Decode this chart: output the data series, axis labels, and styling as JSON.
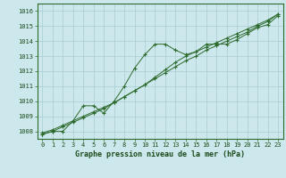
{
  "title": "Graphe pression niveau de la mer (hPa)",
  "background_color": "#cde8ec",
  "grid_color": "#a8cdd2",
  "line_color": "#2d6a2d",
  "x_values": [
    0,
    1,
    2,
    3,
    4,
    5,
    6,
    7,
    8,
    9,
    10,
    11,
    12,
    13,
    14,
    15,
    16,
    17,
    18,
    19,
    20,
    21,
    22,
    23
  ],
  "series1": [
    1007.8,
    1008.0,
    1008.0,
    1008.7,
    1009.7,
    1009.7,
    1009.2,
    1010.0,
    1011.0,
    1012.2,
    1013.1,
    1013.8,
    1013.8,
    1013.4,
    1013.1,
    1013.3,
    1013.8,
    1013.8,
    1013.8,
    1014.1,
    1014.5,
    1014.9,
    1015.1,
    1015.7
  ],
  "series2": [
    1007.9,
    1008.1,
    1008.4,
    1008.7,
    1009.0,
    1009.3,
    1009.6,
    1009.9,
    1010.3,
    1010.7,
    1011.1,
    1011.5,
    1011.9,
    1012.3,
    1012.7,
    1013.0,
    1013.4,
    1013.7,
    1014.0,
    1014.3,
    1014.6,
    1015.0,
    1015.3,
    1015.8
  ],
  "series3": [
    1007.8,
    1008.0,
    1008.3,
    1008.6,
    1008.9,
    1009.2,
    1009.5,
    1009.9,
    1010.3,
    1010.7,
    1011.1,
    1011.6,
    1012.1,
    1012.6,
    1013.0,
    1013.3,
    1013.6,
    1013.9,
    1014.2,
    1014.5,
    1014.8,
    1015.1,
    1015.4,
    1015.8
  ],
  "ylim": [
    1007.5,
    1016.5
  ],
  "yticks": [
    1008,
    1009,
    1010,
    1011,
    1012,
    1013,
    1014,
    1015,
    1016
  ],
  "xticks": [
    0,
    1,
    2,
    3,
    4,
    5,
    6,
    7,
    8,
    9,
    10,
    11,
    12,
    13,
    14,
    15,
    16,
    17,
    18,
    19,
    20,
    21,
    22,
    23
  ],
  "xlabel_fontsize": 6.0,
  "tick_fontsize": 5.0
}
